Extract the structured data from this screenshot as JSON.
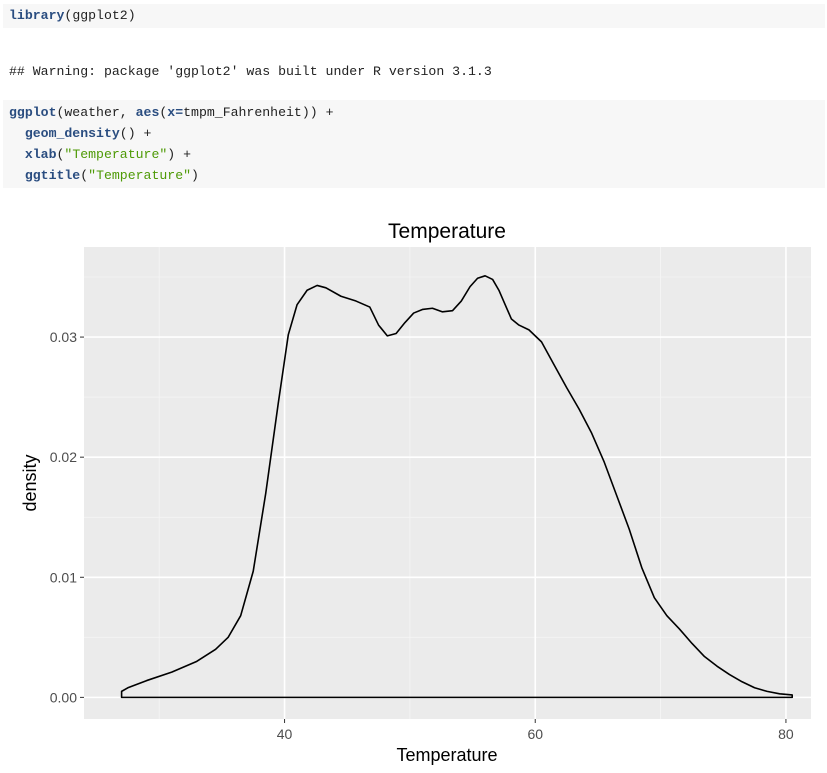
{
  "code1": {
    "kw": "library",
    "rest": "(ggplot2)"
  },
  "warning": "## Warning: package 'ggplot2' was built under R version 3.1.3",
  "code2": {
    "line1_kw1": "ggplot",
    "line1_mid": "(weather, ",
    "line1_kw2": "aes",
    "line1_p": "(",
    "line1_kw3": "x=",
    "line1_end": "tmpm_Fahrenheit)) +",
    "line2_kw": "geom_density",
    "line2_end": "() +",
    "line3_kw": "xlab",
    "line3_p": "(",
    "line3_str": "\"Temperature\"",
    "line3_end": ") +",
    "line4_kw": "ggtitle",
    "line4_p": "(",
    "line4_str": "\"Temperature\"",
    "line4_end": ")"
  },
  "chart_data": {
    "type": "area",
    "title": "Temperature",
    "xlabel": "Temperature",
    "ylabel": "density",
    "xlim": [
      24,
      82
    ],
    "ylim": [
      -0.0018,
      0.0375
    ],
    "xticks": [
      40,
      60,
      80
    ],
    "yticks": [
      0.0,
      0.01,
      0.02,
      0.03
    ],
    "xtick_labels": [
      "40",
      "60",
      "80"
    ],
    "ytick_labels": [
      "0.00",
      "0.01",
      "0.02",
      "0.03"
    ],
    "grid": true,
    "background": "#ebebeb",
    "line_color": "#000000",
    "x": [
      27,
      27.5,
      29,
      31,
      33,
      34.5,
      35.5,
      36.5,
      37.5,
      38.5,
      39.5,
      40.3,
      41,
      41.8,
      42.6,
      43.3,
      44.5,
      45.7,
      46.8,
      47.5,
      48.2,
      48.9,
      49.6,
      50.3,
      51,
      51.8,
      52.6,
      53.4,
      54.1,
      54.8,
      55.4,
      56,
      56.6,
      57.1,
      57.6,
      58.1,
      58.7,
      59.5,
      60.5,
      61.5,
      62.5,
      63.5,
      64.5,
      65.5,
      66.5,
      67.5,
      68.5,
      69.5,
      70.5,
      71.5,
      72.5,
      73.5,
      74.5,
      75.5,
      76.5,
      77.5,
      78.5,
      79.5,
      80.5
    ],
    "y": [
      0.0005,
      0.0008,
      0.0014,
      0.0021,
      0.003,
      0.004,
      0.005,
      0.0068,
      0.0105,
      0.017,
      0.0245,
      0.0302,
      0.0327,
      0.0339,
      0.0343,
      0.0341,
      0.0334,
      0.033,
      0.0325,
      0.031,
      0.0301,
      0.0303,
      0.0312,
      0.032,
      0.0323,
      0.0324,
      0.0321,
      0.0322,
      0.033,
      0.0342,
      0.0349,
      0.0351,
      0.0348,
      0.0339,
      0.0327,
      0.0315,
      0.031,
      0.0306,
      0.0296,
      0.0277,
      0.0258,
      0.024,
      0.022,
      0.0196,
      0.0168,
      0.014,
      0.0108,
      0.0083,
      0.0068,
      0.0057,
      0.0045,
      0.0034,
      0.0026,
      0.0019,
      0.0013,
      0.0008,
      0.0005,
      0.0003,
      0.0002
    ]
  }
}
